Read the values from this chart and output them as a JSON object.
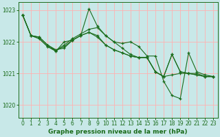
{
  "background_color": "#c8e8e8",
  "grid_color": "#ffb0b0",
  "line_color": "#1a6b1a",
  "xlabel": "Graphe pression niveau de la mer (hPa)",
  "ylim": [
    1019.6,
    1023.25
  ],
  "xlim": [
    -0.5,
    23.5
  ],
  "yticks": [
    1020,
    1021,
    1022,
    1023
  ],
  "xticks": [
    0,
    1,
    2,
    3,
    4,
    5,
    6,
    7,
    8,
    9,
    10,
    11,
    12,
    13,
    14,
    15,
    16,
    17,
    18,
    19,
    20,
    21,
    22,
    23
  ],
  "line1_x": [
    0,
    1,
    2,
    3,
    4,
    5,
    6,
    7,
    8,
    9,
    10,
    11,
    12,
    13,
    14,
    15,
    16,
    17,
    18,
    19,
    20,
    21,
    22,
    23
  ],
  "line1_y": [
    1022.85,
    1022.2,
    1022.15,
    1021.9,
    1021.75,
    1021.8,
    1022.05,
    1022.2,
    1022.3,
    1022.15,
    1021.9,
    1021.75,
    1021.65,
    1021.55,
    1021.5,
    1021.5,
    1021.05,
    1020.9,
    1021.6,
    1021.05,
    1021.0,
    1020.95,
    1020.9,
    1020.9
  ],
  "line2_x": [
    0,
    1,
    2,
    3,
    4,
    5,
    6,
    7,
    8,
    9,
    10,
    11,
    12,
    13,
    14,
    15,
    16,
    17,
    18,
    19,
    20,
    21,
    22,
    23
  ],
  "line2_y": [
    1022.85,
    1022.2,
    1022.1,
    1021.85,
    1021.72,
    1021.9,
    1022.1,
    1022.25,
    1022.4,
    1022.45,
    1022.2,
    1022.0,
    1021.8,
    1021.6,
    1021.5,
    1021.5,
    1021.05,
    1020.9,
    1020.95,
    1021.0,
    1021.0,
    1021.0,
    1020.9,
    1020.9
  ],
  "line3_x": [
    0,
    1,
    2,
    3,
    4,
    5,
    6,
    7,
    8,
    9,
    10,
    11,
    12,
    13,
    14,
    15,
    16,
    17,
    18,
    19,
    20,
    21,
    22,
    23
  ],
  "line3_y": [
    1022.85,
    1022.2,
    1022.1,
    1021.85,
    1021.7,
    1022.0,
    1022.05,
    1022.2,
    1023.05,
    1022.5,
    1022.2,
    1022.0,
    1021.95,
    1022.0,
    1021.85,
    1021.55,
    1021.55,
    1020.75,
    1020.3,
    1020.2,
    1021.65,
    1021.05,
    1020.95,
    1020.9
  ],
  "line4_x": [
    0,
    1,
    2,
    3,
    4,
    5,
    6,
    7,
    8,
    9,
    10,
    11,
    12,
    13,
    14,
    15,
    16,
    17,
    18,
    19,
    20,
    21,
    22,
    23
  ],
  "line4_y": [
    1022.85,
    1022.2,
    1022.15,
    1021.9,
    1021.72,
    1021.85,
    1022.05,
    1022.2,
    1022.3,
    1022.2,
    1021.9,
    1021.75,
    1021.65,
    1021.55,
    1021.5,
    1021.5,
    1021.05,
    1020.9,
    1021.6,
    1021.05,
    1021.0,
    1020.95,
    1020.9,
    1020.9
  ],
  "marker": "+",
  "markersize": 3.5,
  "linewidth": 0.8,
  "tick_fontsize": 5.5,
  "xlabel_fontsize": 6.5
}
